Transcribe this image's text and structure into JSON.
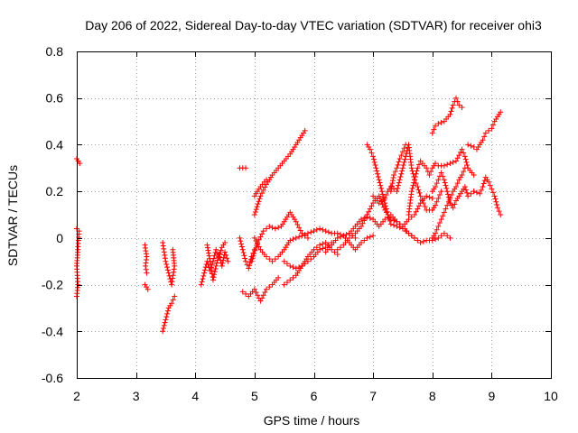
{
  "chart_data": {
    "type": "scatter",
    "title": "Day 206 of 2022, Sidereal Day-to-day VTEC variation (SDTVAR) for receiver ohi3",
    "xlabel": "GPS time / hours",
    "ylabel": "SDTVAR / TECUs",
    "xlim": [
      2,
      10
    ],
    "ylim": [
      -0.6,
      0.8
    ],
    "x_ticks": [
      2,
      3,
      4,
      5,
      6,
      7,
      8,
      9,
      10
    ],
    "y_ticks": [
      -0.6,
      -0.4,
      -0.2,
      0,
      0.2,
      0.4,
      0.6,
      0.8
    ],
    "x_tick_labels": [
      "2",
      "3",
      "4",
      "5",
      "6",
      "7",
      "8",
      "9",
      "10"
    ],
    "y_tick_labels": [
      "-0.6",
      "-0.4",
      "-0.2",
      "0",
      "0.2",
      "0.4",
      "0.6",
      "0.8"
    ],
    "grid": true,
    "marker": "+",
    "series": [
      {
        "name": "SDTVAR",
        "color": "#ff0000",
        "segments": [
          [
            [
              2.0,
              0.34
            ],
            [
              2.05,
              0.32
            ]
          ],
          [
            [
              2.0,
              0.04
            ],
            [
              2.04,
              0.03
            ],
            [
              2.02,
              -0.05
            ],
            [
              2.0,
              -0.12
            ],
            [
              2.02,
              -0.2
            ],
            [
              2.0,
              -0.25
            ]
          ],
          [
            [
              3.15,
              -0.03
            ],
            [
              3.18,
              -0.08
            ],
            [
              3.16,
              -0.12
            ],
            [
              3.18,
              -0.15
            ]
          ],
          [
            [
              3.15,
              -0.2
            ],
            [
              3.2,
              -0.22
            ]
          ],
          [
            [
              3.45,
              -0.02
            ],
            [
              3.5,
              -0.1
            ],
            [
              3.55,
              -0.15
            ],
            [
              3.6,
              -0.2
            ],
            [
              3.65,
              -0.12
            ],
            [
              3.62,
              -0.05
            ]
          ],
          [
            [
              3.45,
              -0.4
            ],
            [
              3.5,
              -0.35
            ],
            [
              3.55,
              -0.3
            ],
            [
              3.6,
              -0.28
            ],
            [
              3.65,
              -0.25
            ]
          ],
          [
            [
              4.1,
              -0.2
            ],
            [
              4.15,
              -0.15
            ],
            [
              4.2,
              -0.1
            ],
            [
              4.25,
              -0.14
            ],
            [
              4.3,
              -0.1
            ],
            [
              4.35,
              -0.05
            ],
            [
              4.4,
              -0.08
            ],
            [
              4.45,
              -0.04
            ],
            [
              4.5,
              -0.02
            ]
          ],
          [
            [
              4.2,
              -0.03
            ],
            [
              4.25,
              -0.1
            ],
            [
              4.3,
              -0.18
            ],
            [
              4.35,
              -0.12
            ],
            [
              4.4,
              -0.07
            ],
            [
              4.45,
              -0.12
            ],
            [
              4.5,
              -0.06
            ],
            [
              4.55,
              -0.1
            ]
          ],
          [
            [
              4.75,
              0.3
            ],
            [
              4.85,
              0.3
            ]
          ],
          [
            [
              4.75,
              0.0
            ],
            [
              4.8,
              -0.05
            ],
            [
              4.85,
              -0.1
            ],
            [
              4.9,
              -0.13
            ],
            [
              4.95,
              -0.08
            ],
            [
              5.0,
              -0.05
            ]
          ],
          [
            [
              4.8,
              -0.23
            ],
            [
              4.9,
              -0.25
            ],
            [
              5.0,
              -0.22
            ],
            [
              5.1,
              -0.27
            ],
            [
              5.2,
              -0.22
            ],
            [
              5.3,
              -0.2
            ],
            [
              5.4,
              -0.17
            ]
          ],
          [
            [
              5.0,
              0.1
            ],
            [
              5.1,
              0.18
            ],
            [
              5.2,
              0.23
            ],
            [
              5.3,
              0.27
            ],
            [
              5.4,
              0.3
            ],
            [
              5.5,
              0.33
            ],
            [
              5.6,
              0.36
            ],
            [
              5.7,
              0.4
            ],
            [
              5.8,
              0.44
            ],
            [
              5.85,
              0.46
            ]
          ],
          [
            [
              4.95,
              -0.1
            ],
            [
              5.05,
              -0.02
            ],
            [
              5.15,
              0.03
            ],
            [
              5.25,
              0.05
            ],
            [
              5.35,
              0.04
            ],
            [
              5.45,
              0.05
            ],
            [
              5.55,
              0.09
            ],
            [
              5.6,
              0.11
            ],
            [
              5.7,
              0.07
            ],
            [
              5.8,
              0.02
            ],
            [
              5.9,
              0.0
            ]
          ],
          [
            [
              5.0,
              0.0
            ],
            [
              5.1,
              -0.05
            ],
            [
              5.2,
              -0.08
            ],
            [
              5.3,
              -0.1
            ],
            [
              5.4,
              -0.08
            ],
            [
              5.5,
              -0.05
            ],
            [
              5.6,
              -0.01
            ],
            [
              5.7,
              0.0
            ],
            [
              5.8,
              0.01
            ],
            [
              5.9,
              0.02
            ],
            [
              6.0,
              0.03
            ],
            [
              6.1,
              0.04
            ],
            [
              6.2,
              0.03
            ],
            [
              6.3,
              0.02
            ],
            [
              6.4,
              0.02
            ],
            [
              6.5,
              0.01
            ],
            [
              6.6,
              0.02
            ],
            [
              6.7,
              0.0
            ]
          ],
          [
            [
              5.0,
              0.18
            ],
            [
              5.05,
              0.2
            ],
            [
              5.1,
              0.22
            ],
            [
              5.2,
              0.25
            ]
          ],
          [
            [
              5.5,
              -0.2
            ],
            [
              5.6,
              -0.18
            ],
            [
              5.7,
              -0.16
            ],
            [
              5.8,
              -0.12
            ],
            [
              5.9,
              -0.1
            ],
            [
              6.0,
              -0.08
            ],
            [
              6.1,
              -0.05
            ],
            [
              6.2,
              -0.04
            ],
            [
              6.3,
              -0.02
            ]
          ],
          [
            [
              5.5,
              -0.1
            ],
            [
              5.6,
              -0.12
            ],
            [
              5.7,
              -0.13
            ],
            [
              5.8,
              -0.12
            ],
            [
              5.9,
              -0.08
            ],
            [
              6.0,
              -0.05
            ],
            [
              6.1,
              -0.03
            ],
            [
              6.2,
              -0.02
            ],
            [
              6.3,
              -0.05
            ],
            [
              6.4,
              -0.07
            ]
          ],
          [
            [
              6.2,
              -0.06
            ],
            [
              6.3,
              -0.03
            ],
            [
              6.4,
              0.0
            ],
            [
              6.5,
              0.01
            ],
            [
              6.6,
              -0.02
            ],
            [
              6.7,
              -0.05
            ],
            [
              6.8,
              -0.02
            ],
            [
              6.9,
              0.0
            ],
            [
              7.0,
              0.01
            ]
          ],
          [
            [
              6.4,
              -0.05
            ],
            [
              6.5,
              -0.03
            ],
            [
              6.6,
              0.0
            ],
            [
              6.7,
              0.02
            ],
            [
              6.8,
              0.05
            ],
            [
              6.9,
              0.1
            ],
            [
              7.0,
              0.15
            ],
            [
              7.1,
              0.18
            ],
            [
              7.2,
              0.12
            ],
            [
              7.3,
              0.08
            ],
            [
              7.4,
              0.07
            ],
            [
              7.5,
              0.05
            ],
            [
              7.6,
              0.08
            ],
            [
              7.7,
              0.1
            ],
            [
              7.8,
              0.15
            ],
            [
              7.9,
              0.18
            ],
            [
              8.0,
              0.17
            ]
          ],
          [
            [
              6.6,
              0.02
            ],
            [
              6.7,
              0.05
            ],
            [
              6.8,
              0.08
            ],
            [
              6.9,
              0.09
            ],
            [
              7.0,
              0.08
            ],
            [
              7.1,
              0.05
            ],
            [
              7.2,
              0.08
            ],
            [
              7.3,
              0.1
            ],
            [
              7.4,
              0.07
            ],
            [
              7.5,
              0.05
            ],
            [
              7.6,
              0.02
            ],
            [
              7.7,
              0.0
            ],
            [
              7.8,
              -0.02
            ],
            [
              7.9,
              -0.01
            ],
            [
              8.0,
              -0.01
            ],
            [
              8.1,
              0.0
            ],
            [
              8.2,
              0.02
            ],
            [
              8.3,
              0.0
            ]
          ],
          [
            [
              6.9,
              0.4
            ],
            [
              6.95,
              0.38
            ],
            [
              7.0,
              0.35
            ],
            [
              7.05,
              0.3
            ],
            [
              7.1,
              0.25
            ],
            [
              7.15,
              0.2
            ],
            [
              7.2,
              0.15
            ],
            [
              7.25,
              0.1
            ],
            [
              7.3,
              0.06
            ],
            [
              7.4,
              0.05
            ],
            [
              7.5,
              0.04
            ],
            [
              7.6,
              0.02
            ],
            [
              7.7,
              0.0
            ]
          ],
          [
            [
              7.0,
              0.18
            ],
            [
              7.1,
              0.15
            ],
            [
              7.2,
              0.17
            ],
            [
              7.25,
              0.2
            ],
            [
              7.3,
              0.22
            ],
            [
              7.4,
              0.2
            ],
            [
              7.45,
              0.25
            ],
            [
              7.5,
              0.3
            ],
            [
              7.55,
              0.35
            ],
            [
              7.6,
              0.4
            ],
            [
              7.65,
              0.3
            ],
            [
              7.7,
              0.25
            ],
            [
              7.75,
              0.22
            ],
            [
              7.8,
              0.18
            ],
            [
              7.85,
              0.15
            ],
            [
              7.9,
              0.12
            ],
            [
              8.0,
              0.12
            ],
            [
              8.05,
              0.14
            ],
            [
              8.1,
              0.17
            ],
            [
              8.15,
              0.2
            ]
          ],
          [
            [
              7.3,
              0.2
            ],
            [
              7.35,
              0.27
            ],
            [
              7.4,
              0.3
            ],
            [
              7.45,
              0.34
            ],
            [
              7.5,
              0.37
            ],
            [
              7.55,
              0.4
            ]
          ],
          [
            [
              7.6,
              0.1
            ],
            [
              7.65,
              0.2
            ],
            [
              7.7,
              0.25
            ],
            [
              7.75,
              0.3
            ],
            [
              7.8,
              0.33
            ],
            [
              7.9,
              0.3
            ],
            [
              7.95,
              0.27
            ],
            [
              8.0,
              0.3
            ],
            [
              8.05,
              0.32
            ],
            [
              8.1,
              0.31
            ],
            [
              8.2,
              0.31
            ],
            [
              8.3,
              0.32
            ],
            [
              8.4,
              0.33
            ],
            [
              8.5,
              0.38
            ],
            [
              8.55,
              0.35
            ],
            [
              8.6,
              0.3
            ],
            [
              8.7,
              0.27
            ]
          ],
          [
            [
              8.0,
              0.45
            ],
            [
              8.05,
              0.48
            ],
            [
              8.1,
              0.49
            ],
            [
              8.2,
              0.5
            ],
            [
              8.3,
              0.53
            ],
            [
              8.35,
              0.57
            ],
            [
              8.4,
              0.6
            ],
            [
              8.45,
              0.57
            ],
            [
              8.5,
              0.56
            ]
          ],
          [
            [
              8.0,
              0.2
            ],
            [
              8.05,
              0.22
            ],
            [
              8.1,
              0.25
            ],
            [
              8.15,
              0.28
            ],
            [
              8.2,
              0.25
            ],
            [
              8.25,
              0.2
            ],
            [
              8.3,
              0.15
            ],
            [
              8.35,
              0.13
            ],
            [
              8.4,
              0.16
            ],
            [
              8.5,
              0.2
            ],
            [
              8.55,
              0.22
            ],
            [
              8.6,
              0.18
            ],
            [
              8.7,
              0.2
            ]
          ],
          [
            [
              8.0,
              0.0
            ],
            [
              8.05,
              0.02
            ],
            [
              8.1,
              0.05
            ],
            [
              8.15,
              0.08
            ],
            [
              8.2,
              0.11
            ],
            [
              8.25,
              0.14
            ],
            [
              8.3,
              0.17
            ],
            [
              8.35,
              0.2
            ],
            [
              8.4,
              0.22
            ],
            [
              8.45,
              0.25
            ],
            [
              8.5,
              0.27
            ],
            [
              8.55,
              0.3
            ]
          ],
          [
            [
              8.6,
              0.4
            ],
            [
              8.7,
              0.39
            ],
            [
              8.75,
              0.38
            ],
            [
              8.8,
              0.4
            ],
            [
              8.85,
              0.42
            ],
            [
              8.9,
              0.45
            ],
            [
              9.0,
              0.47
            ],
            [
              9.05,
              0.5
            ],
            [
              9.1,
              0.52
            ],
            [
              9.15,
              0.54
            ]
          ],
          [
            [
              8.7,
              0.2
            ],
            [
              8.8,
              0.19
            ],
            [
              8.85,
              0.22
            ],
            [
              8.9,
              0.26
            ],
            [
              8.95,
              0.24
            ],
            [
              9.0,
              0.21
            ],
            [
              9.05,
              0.18
            ],
            [
              9.1,
              0.13
            ],
            [
              9.15,
              0.1
            ]
          ]
        ]
      }
    ]
  }
}
